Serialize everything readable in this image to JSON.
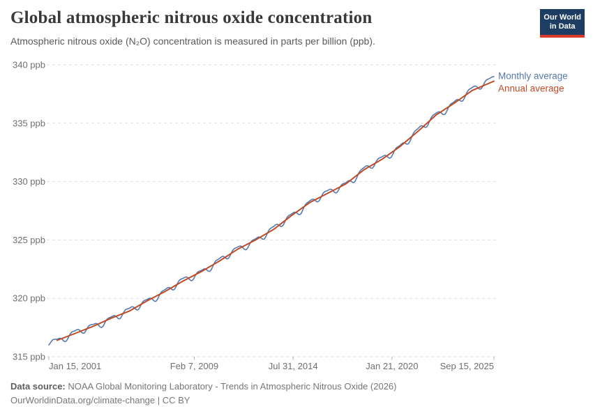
{
  "header": {
    "title": "Global atmospheric nitrous oxide concentration",
    "subtitle": "Atmospheric nitrous oxide (N₂O) concentration is measured in parts per billion (ppb).",
    "logo": {
      "line1": "Our World",
      "line2": "in Data",
      "bg_color": "#1d3d63",
      "bar_color": "#d93a2b"
    }
  },
  "footer": {
    "source_label": "Data source:",
    "source_text": "NOAA Global Monitoring Laboratory - Trends in Atmospheric Nitrous Oxide (2026)",
    "license_text": "OurWorldinData.org/climate-change | CC BY"
  },
  "chart_data": {
    "type": "line",
    "title": "Global atmospheric nitrous oxide concentration",
    "ylabel": "ppb",
    "ylim": [
      315,
      340
    ],
    "xlim": [
      2001.04,
      2025.71
    ],
    "grid": "dashed",
    "grid_color": "#dcdcdc",
    "axis_text_color": "#6f6f6f",
    "tick_color": "#b0b0b0",
    "legend_position": "right-of-line-end",
    "y_ticks": [
      {
        "value": 315,
        "label": "315 ppb"
      },
      {
        "value": 320,
        "label": "320 ppb"
      },
      {
        "value": 325,
        "label": "325 ppb"
      },
      {
        "value": 330,
        "label": "330 ppb"
      },
      {
        "value": 335,
        "label": "335 ppb"
      },
      {
        "value": 340,
        "label": "340 ppb"
      }
    ],
    "x_ticks": [
      {
        "t": 2001.04,
        "label": "Jan 15, 2001",
        "align": "start"
      },
      {
        "t": 2009.1,
        "label": "Feb 7, 2009",
        "align": "middle"
      },
      {
        "t": 2014.58,
        "label": "Jul 31, 2014",
        "align": "middle"
      },
      {
        "t": 2020.06,
        "label": "Jan 21, 2020",
        "align": "middle"
      },
      {
        "t": 2025.71,
        "label": "Sep 15, 2025",
        "align": "end"
      }
    ],
    "series": [
      {
        "name": "Monthly average",
        "color": "#5779ae",
        "width": 1.6,
        "kind": "monthly_from_anchors",
        "anchors": {
          "x": [
            2001.04,
            2001.5,
            2002.5,
            2003.5,
            2004.5,
            2005.5,
            2006.5,
            2007.5,
            2008.5,
            2009.5,
            2010.5,
            2011.5,
            2012.5,
            2013.5,
            2014.5,
            2015.5,
            2016.5,
            2017.5,
            2018.5,
            2019.5,
            2020.5,
            2021.5,
            2022.5,
            2023.5,
            2024.5,
            2025.71
          ],
          "v": [
            316.35,
            316.4,
            317.0,
            317.6,
            318.3,
            318.9,
            319.8,
            320.6,
            321.5,
            322.3,
            323.2,
            324.2,
            325.0,
            325.9,
            327.1,
            328.2,
            329.0,
            329.8,
            331.0,
            331.9,
            333.0,
            334.3,
            335.7,
            336.7,
            337.8,
            338.95
          ]
        },
        "seasonal": {
          "amp1": 0.26,
          "phase1": 0.22,
          "amp2": 0.09,
          "phase2": 0.1,
          "amp3": 0.08,
          "freq3": 0.37
        }
      },
      {
        "name": "Annual average",
        "color": "#be4b26",
        "width": 2,
        "kind": "points",
        "x": [
          2001.5,
          2002.5,
          2003.5,
          2004.5,
          2005.5,
          2006.5,
          2007.5,
          2008.5,
          2009.5,
          2010.5,
          2011.5,
          2012.5,
          2013.5,
          2014.5,
          2015.5,
          2016.5,
          2017.5,
          2018.5,
          2019.5,
          2020.5,
          2021.5,
          2022.5,
          2023.5,
          2024.5,
          2025.71
        ],
        "values": [
          316.4,
          317.0,
          317.6,
          318.3,
          318.9,
          319.8,
          320.6,
          321.5,
          322.3,
          323.2,
          324.2,
          325.0,
          325.9,
          327.1,
          328.2,
          329.0,
          329.8,
          331.0,
          331.9,
          333.0,
          334.3,
          335.7,
          336.7,
          337.8,
          338.6
        ]
      }
    ]
  }
}
